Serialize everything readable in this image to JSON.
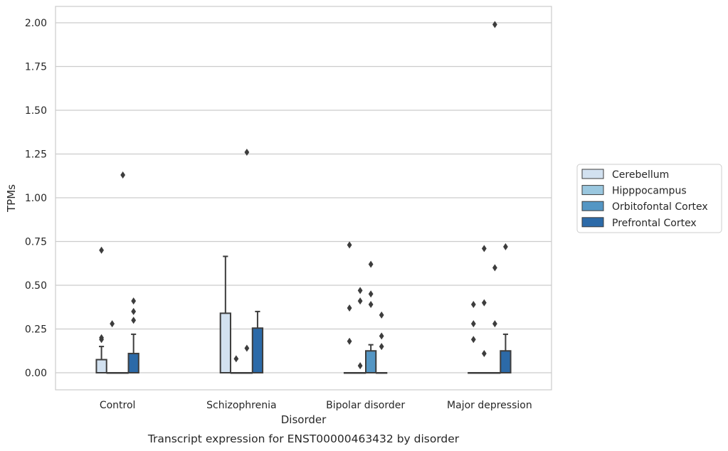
{
  "chart_data": {
    "type": "box",
    "caption": "Transcript expression for ENST00000463432 by disorder",
    "xlabel": "Disorder",
    "ylabel": "TPMs",
    "ylim": [
      -0.1,
      2.1
    ],
    "yticks": [
      "0.00",
      "0.25",
      "0.50",
      "0.75",
      "1.00",
      "1.25",
      "1.50",
      "1.75",
      "2.00"
    ],
    "categories": [
      "Control",
      "Schizophrenia",
      "Bipolar disorder",
      "Major depression"
    ],
    "grid": true,
    "legend_position": "right",
    "series": [
      {
        "name": "Cerebellum",
        "color": "#d2e1f0",
        "boxes": [
          {
            "q1": 0,
            "median": 0,
            "q3": 0.075,
            "whisker_low": 0,
            "whisker_high": 0.15,
            "outliers": [
              0.19,
              0.2,
              0.7
            ]
          },
          {
            "q1": 0,
            "median": 0,
            "q3": 0.34,
            "whisker_low": 0,
            "whisker_high": 0.665,
            "outliers": []
          },
          {
            "q1": 0,
            "median": 0,
            "q3": 0,
            "whisker_low": 0,
            "whisker_high": 0,
            "outliers": [
              0.18,
              0.37,
              0.73
            ]
          },
          {
            "q1": 0,
            "median": 0,
            "q3": 0,
            "whisker_low": 0,
            "whisker_high": 0,
            "outliers": [
              0.19,
              0.28,
              0.39
            ]
          }
        ]
      },
      {
        "name": "Hipppocampus",
        "color": "#9ac7df",
        "boxes": [
          {
            "q1": 0,
            "median": 0,
            "q3": 0,
            "whisker_low": 0,
            "whisker_high": 0,
            "outliers": [
              0.28
            ]
          },
          {
            "q1": 0,
            "median": 0,
            "q3": 0,
            "whisker_low": 0,
            "whisker_high": 0,
            "outliers": [
              0.08
            ]
          },
          {
            "q1": 0,
            "median": 0,
            "q3": 0,
            "whisker_low": 0,
            "whisker_high": 0,
            "outliers": [
              0.04,
              0.41,
              0.47
            ]
          },
          {
            "q1": 0,
            "median": 0,
            "q3": 0,
            "whisker_low": 0,
            "whisker_high": 0,
            "outliers": [
              0.11,
              0.4,
              0.71
            ]
          }
        ]
      },
      {
        "name": "Orbitofontal Cortex",
        "color": "#5496c4",
        "boxes": [
          {
            "q1": 0,
            "median": 0,
            "q3": 0,
            "whisker_low": 0,
            "whisker_high": 0,
            "outliers": [
              1.13
            ]
          },
          {
            "q1": 0,
            "median": 0,
            "q3": 0,
            "whisker_low": 0,
            "whisker_high": 0,
            "outliers": [
              0.14,
              1.26
            ]
          },
          {
            "q1": 0,
            "median": 0,
            "q3": 0.125,
            "whisker_low": 0,
            "whisker_high": 0.16,
            "outliers": [
              0.39,
              0.45,
              0.62
            ]
          },
          {
            "q1": 0,
            "median": 0,
            "q3": 0,
            "whisker_low": 0,
            "whisker_high": 0,
            "outliers": [
              0.28,
              0.6,
              1.99
            ]
          }
        ]
      },
      {
        "name": "Prefrontal Cortex",
        "color": "#2c6aa8",
        "boxes": [
          {
            "q1": 0,
            "median": 0,
            "q3": 0.11,
            "whisker_low": 0,
            "whisker_high": 0.22,
            "outliers": [
              0.3,
              0.35,
              0.41
            ]
          },
          {
            "q1": 0,
            "median": 0,
            "q3": 0.255,
            "whisker_low": 0,
            "whisker_high": 0.35,
            "outliers": []
          },
          {
            "q1": 0,
            "median": 0,
            "q3": 0,
            "whisker_low": 0,
            "whisker_high": 0,
            "outliers": [
              0.15,
              0.21,
              0.33
            ]
          },
          {
            "q1": 0,
            "median": 0,
            "q3": 0.125,
            "whisker_low": 0,
            "whisker_high": 0.22,
            "outliers": [
              0.72
            ]
          }
        ]
      }
    ]
  }
}
